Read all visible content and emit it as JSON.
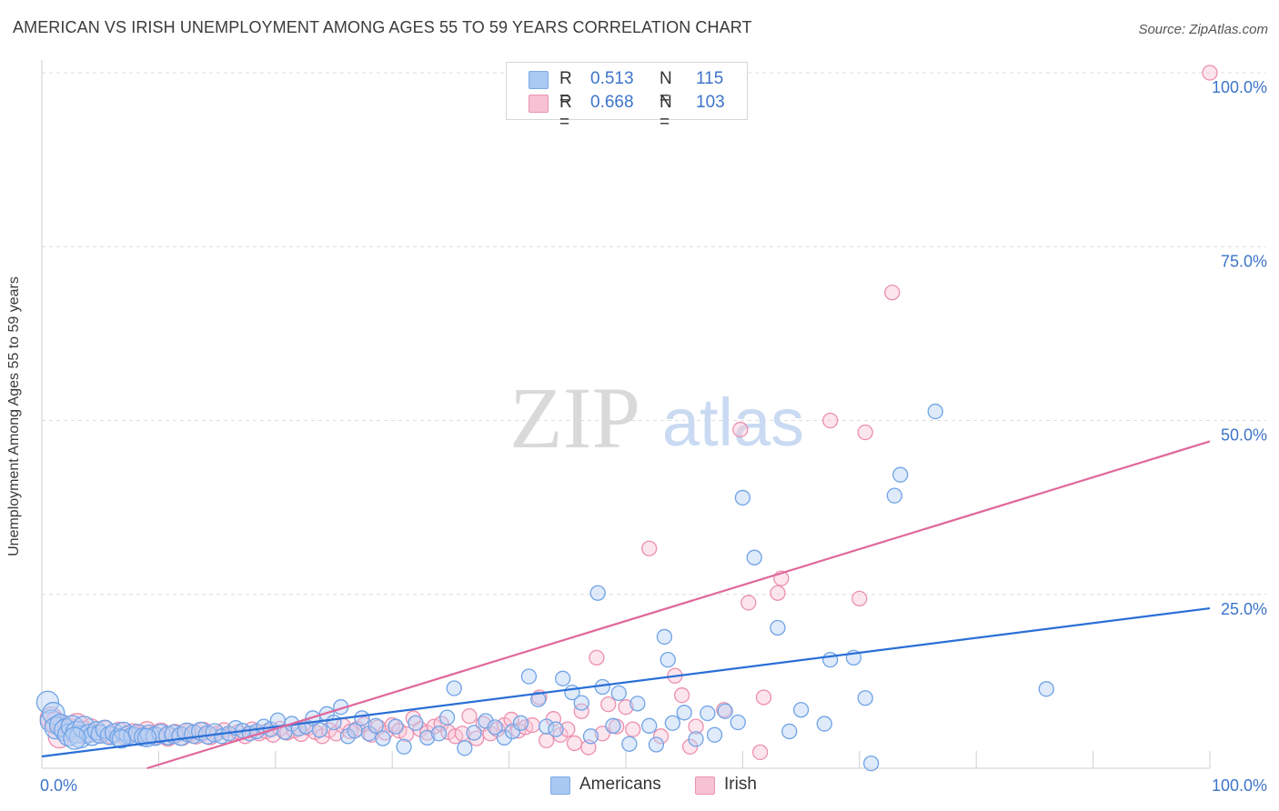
{
  "header": {
    "title": "AMERICAN VS IRISH UNEMPLOYMENT AMONG AGES 55 TO 59 YEARS CORRELATION CHART",
    "source": "Source: ZipAtlas.com"
  },
  "watermark": {
    "zip": "ZIP",
    "atlas": "atlas"
  },
  "legend": {
    "r_label": "R =",
    "n_label": "N =",
    "entries": [
      {
        "r_value": "0.513",
        "n_value": "115",
        "color": "#a9c8f2",
        "border": "#7ea9e6"
      },
      {
        "r_value": "0.668",
        "n_value": "103",
        "color": "#f7c2d3",
        "border": "#ec93b1"
      }
    ]
  },
  "bottom_legend": [
    {
      "label": "Americans",
      "color": "#a9c8f2",
      "border": "#7ea9e6"
    },
    {
      "label": "Irish",
      "color": "#f7c2d3",
      "border": "#ec93b1"
    }
  ],
  "chart_data": {
    "type": "scatter",
    "title": "AMERICAN VS IRISH UNEMPLOYMENT AMONG AGES 55 TO 59 YEARS CORRELATION CHART",
    "xlabel": "",
    "ylabel": "Unemployment Among Ages 55 to 59 years",
    "xlim": [
      0,
      100
    ],
    "ylim": [
      0,
      100
    ],
    "x_tick_labels": [
      {
        "value": 0,
        "label": "0.0%"
      },
      {
        "value": 100,
        "label": "100.0%"
      }
    ],
    "y_tick_labels": [
      {
        "value": 25,
        "label": "25.0%"
      },
      {
        "value": 50,
        "label": "50.0%"
      },
      {
        "value": 75,
        "label": "75.0%"
      },
      {
        "value": 100,
        "label": "100.0%"
      }
    ],
    "grid": true,
    "legend_position": "top-center",
    "series": [
      {
        "name": "Americans",
        "color": "#6fa3e6",
        "fill": "#b7d1f3",
        "line_color": "#2a6fd6",
        "trendline": {
          "x": [
            0,
            100
          ],
          "y": [
            1.7,
            23.0
          ]
        },
        "points": [
          [
            0.5,
            9.5
          ],
          [
            0.8,
            6.8
          ],
          [
            1.0,
            7.9
          ],
          [
            1.2,
            5.8
          ],
          [
            1.6,
            6.2
          ],
          [
            2.0,
            5.5
          ],
          [
            2.3,
            4.8
          ],
          [
            2.6,
            6.0
          ],
          [
            3.0,
            5.2
          ],
          [
            3.3,
            4.5
          ],
          [
            3.6,
            5.9
          ],
          [
            4.0,
            5.0
          ],
          [
            4.3,
            4.6
          ],
          [
            4.7,
            5.4
          ],
          [
            5.0,
            4.9
          ],
          [
            5.4,
            5.6
          ],
          [
            5.8,
            4.7
          ],
          [
            6.2,
            5.1
          ],
          [
            6.6,
            4.4
          ],
          [
            7.0,
            5.3
          ],
          [
            7.4,
            4.8
          ],
          [
            7.8,
            4.6
          ],
          [
            8.2,
            5.0
          ],
          [
            8.7,
            4.5
          ],
          [
            9.2,
            4.9
          ],
          [
            9.7,
            4.6
          ],
          [
            10.2,
            5.0
          ],
          [
            10.8,
            4.7
          ],
          [
            11.3,
            4.9
          ],
          [
            11.9,
            4.6
          ],
          [
            12.4,
            5.2
          ],
          [
            13.0,
            4.9
          ],
          [
            13.6,
            5.3
          ],
          [
            14.2,
            4.8
          ],
          [
            14.8,
            5.1
          ],
          [
            15.4,
            4.6
          ],
          [
            16.0,
            5.0
          ],
          [
            16.6,
            5.8
          ],
          [
            17.2,
            5.4
          ],
          [
            17.8,
            5.0
          ],
          [
            18.4,
            5.3
          ],
          [
            19.0,
            6.0
          ],
          [
            19.6,
            5.6
          ],
          [
            20.2,
            6.9
          ],
          [
            20.8,
            5.2
          ],
          [
            21.4,
            6.4
          ],
          [
            22.0,
            5.7
          ],
          [
            22.6,
            6.0
          ],
          [
            23.2,
            7.2
          ],
          [
            23.8,
            5.5
          ],
          [
            24.4,
            7.8
          ],
          [
            25.0,
            6.6
          ],
          [
            25.6,
            8.8
          ],
          [
            26.2,
            4.6
          ],
          [
            26.8,
            5.4
          ],
          [
            27.4,
            7.2
          ],
          [
            28.0,
            5.0
          ],
          [
            28.6,
            6.1
          ],
          [
            29.2,
            4.3
          ],
          [
            30.3,
            6.0
          ],
          [
            31.0,
            3.1
          ],
          [
            32.0,
            6.5
          ],
          [
            33.0,
            4.4
          ],
          [
            34.0,
            5.0
          ],
          [
            34.7,
            7.3
          ],
          [
            35.3,
            11.5
          ],
          [
            36.2,
            2.9
          ],
          [
            37.0,
            5.1
          ],
          [
            38.0,
            6.8
          ],
          [
            38.8,
            5.9
          ],
          [
            39.6,
            4.4
          ],
          [
            40.3,
            5.3
          ],
          [
            41.0,
            6.5
          ],
          [
            41.7,
            13.2
          ],
          [
            42.5,
            9.9
          ],
          [
            43.2,
            6.0
          ],
          [
            44.0,
            5.6
          ],
          [
            44.6,
            12.9
          ],
          [
            45.4,
            10.9
          ],
          [
            46.2,
            9.4
          ],
          [
            47.0,
            4.6
          ],
          [
            47.6,
            25.2
          ],
          [
            48.0,
            11.7
          ],
          [
            48.9,
            6.1
          ],
          [
            49.4,
            10.8
          ],
          [
            50.3,
            3.5
          ],
          [
            51.0,
            9.3
          ],
          [
            52.0,
            6.1
          ],
          [
            52.6,
            3.4
          ],
          [
            53.3,
            18.9
          ],
          [
            53.6,
            15.6
          ],
          [
            54.0,
            6.5
          ],
          [
            55.0,
            8.0
          ],
          [
            56.0,
            4.2
          ],
          [
            57.0,
            7.9
          ],
          [
            57.6,
            4.8
          ],
          [
            58.5,
            8.2
          ],
          [
            59.6,
            6.6
          ],
          [
            60.0,
            38.9
          ],
          [
            61.0,
            30.3
          ],
          [
            63.0,
            20.2
          ],
          [
            64.0,
            5.3
          ],
          [
            65.0,
            8.4
          ],
          [
            67.0,
            6.4
          ],
          [
            67.5,
            15.6
          ],
          [
            69.5,
            15.9
          ],
          [
            70.5,
            10.1
          ],
          [
            71.0,
            0.7
          ],
          [
            73.0,
            39.2
          ],
          [
            73.5,
            42.2
          ],
          [
            76.5,
            51.3
          ],
          [
            86.0,
            11.4
          ],
          [
            2.8,
            4.3
          ],
          [
            6.8,
            4.2
          ],
          [
            9.0,
            4.4
          ]
        ]
      },
      {
        "name": "Irish",
        "color": "#ec8fae",
        "fill": "#f8c6d6",
        "line_color": "#e0679b",
        "trendline": {
          "x": [
            9,
            100
          ],
          "y": [
            0,
            47
          ]
        },
        "points": [
          [
            0.8,
            7.2
          ],
          [
            1.2,
            6.5
          ],
          [
            1.8,
            6.0
          ],
          [
            2.4,
            5.6
          ],
          [
            3.0,
            6.3
          ],
          [
            3.6,
            5.2
          ],
          [
            4.2,
            5.8
          ],
          [
            4.8,
            5.0
          ],
          [
            5.4,
            5.5
          ],
          [
            6.0,
            4.8
          ],
          [
            6.6,
            5.3
          ],
          [
            7.2,
            4.6
          ],
          [
            7.8,
            5.1
          ],
          [
            8.4,
            4.9
          ],
          [
            9.0,
            5.4
          ],
          [
            9.6,
            4.7
          ],
          [
            10.2,
            5.2
          ],
          [
            10.8,
            4.5
          ],
          [
            11.4,
            5.0
          ],
          [
            12.0,
            4.6
          ],
          [
            12.6,
            5.1
          ],
          [
            13.2,
            4.8
          ],
          [
            13.8,
            5.3
          ],
          [
            14.4,
            4.7
          ],
          [
            15.0,
            5.0
          ],
          [
            15.6,
            5.5
          ],
          [
            16.2,
            4.9
          ],
          [
            16.8,
            5.2
          ],
          [
            17.4,
            4.6
          ],
          [
            18.0,
            5.6
          ],
          [
            18.6,
            5.0
          ],
          [
            19.2,
            5.3
          ],
          [
            19.8,
            4.8
          ],
          [
            20.4,
            5.7
          ],
          [
            21.0,
            5.1
          ],
          [
            21.6,
            5.4
          ],
          [
            22.2,
            4.9
          ],
          [
            22.8,
            5.8
          ],
          [
            23.4,
            5.2
          ],
          [
            24.0,
            4.6
          ],
          [
            24.6,
            5.5
          ],
          [
            25.2,
            5.0
          ],
          [
            25.8,
            6.1
          ],
          [
            26.4,
            5.3
          ],
          [
            27.0,
            5.7
          ],
          [
            27.6,
            6.3
          ],
          [
            28.2,
            4.8
          ],
          [
            28.8,
            5.9
          ],
          [
            29.4,
            5.1
          ],
          [
            30.0,
            6.2
          ],
          [
            30.6,
            5.4
          ],
          [
            31.2,
            4.9
          ],
          [
            31.8,
            7.2
          ],
          [
            32.4,
            5.6
          ],
          [
            33.0,
            5.1
          ],
          [
            33.6,
            6.0
          ],
          [
            34.2,
            6.4
          ],
          [
            34.8,
            5.2
          ],
          [
            35.4,
            4.6
          ],
          [
            36.0,
            5.0
          ],
          [
            36.6,
            7.5
          ],
          [
            37.2,
            4.3
          ],
          [
            37.8,
            6.4
          ],
          [
            38.4,
            5.0
          ],
          [
            39.0,
            5.6
          ],
          [
            39.6,
            6.2
          ],
          [
            40.2,
            7.0
          ],
          [
            40.8,
            5.4
          ],
          [
            41.4,
            5.9
          ],
          [
            42.0,
            6.2
          ],
          [
            42.6,
            10.2
          ],
          [
            43.2,
            4.0
          ],
          [
            43.8,
            7.1
          ],
          [
            44.4,
            4.8
          ],
          [
            45.0,
            5.6
          ],
          [
            45.6,
            3.6
          ],
          [
            46.2,
            8.2
          ],
          [
            46.8,
            3.0
          ],
          [
            47.5,
            15.9
          ],
          [
            48.0,
            5.0
          ],
          [
            48.5,
            9.2
          ],
          [
            49.2,
            6.0
          ],
          [
            50.0,
            8.8
          ],
          [
            50.6,
            5.6
          ],
          [
            52.0,
            31.6
          ],
          [
            53.0,
            4.6
          ],
          [
            54.2,
            13.3
          ],
          [
            54.8,
            10.5
          ],
          [
            55.5,
            3.1
          ],
          [
            56.0,
            6.0
          ],
          [
            58.4,
            8.4
          ],
          [
            59.8,
            48.7
          ],
          [
            60.5,
            23.8
          ],
          [
            61.5,
            2.3
          ],
          [
            61.8,
            10.2
          ],
          [
            63.0,
            25.2
          ],
          [
            63.3,
            27.3
          ],
          [
            67.5,
            50.0
          ],
          [
            70.0,
            24.4
          ],
          [
            70.5,
            48.3
          ],
          [
            72.8,
            68.4
          ],
          [
            100.0,
            100.0
          ],
          [
            1.5,
            4.5
          ]
        ]
      }
    ]
  }
}
